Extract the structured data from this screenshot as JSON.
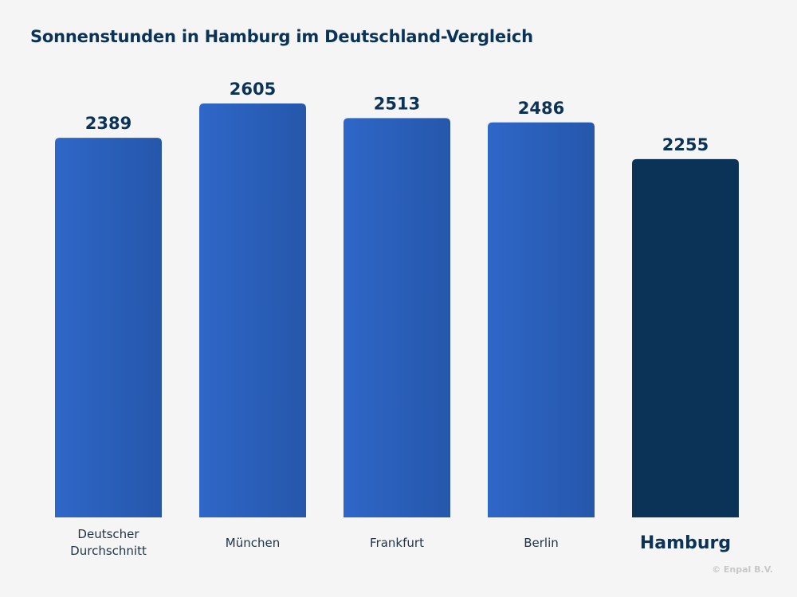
{
  "chart_data": {
    "type": "bar",
    "title": "Sonnenstunden in Hamburg im Deutschland-Vergleich",
    "categories": [
      "Deutscher Durchschnitt",
      "München",
      "Frankfurt",
      "Berlin",
      "Hamburg"
    ],
    "category_lines": [
      [
        "Deutscher",
        "Durchschnitt"
      ],
      [
        "München"
      ],
      [
        "Frankfurt"
      ],
      [
        "Berlin"
      ],
      [
        "Hamburg"
      ]
    ],
    "values": [
      2389,
      2605,
      2513,
      2486,
      2255
    ],
    "highlight": "Hamburg",
    "xlabel": "",
    "ylabel": "",
    "ylim": [
      0,
      2605
    ],
    "grid": false,
    "legend": "none",
    "colors": {
      "bar_light": "#2f67c8",
      "bar_dark": "#2557ab",
      "highlight": "#0b3357",
      "value_text": "#0b3357",
      "category_text": "#1f3247"
    }
  },
  "credit": "© Enpal B.V."
}
